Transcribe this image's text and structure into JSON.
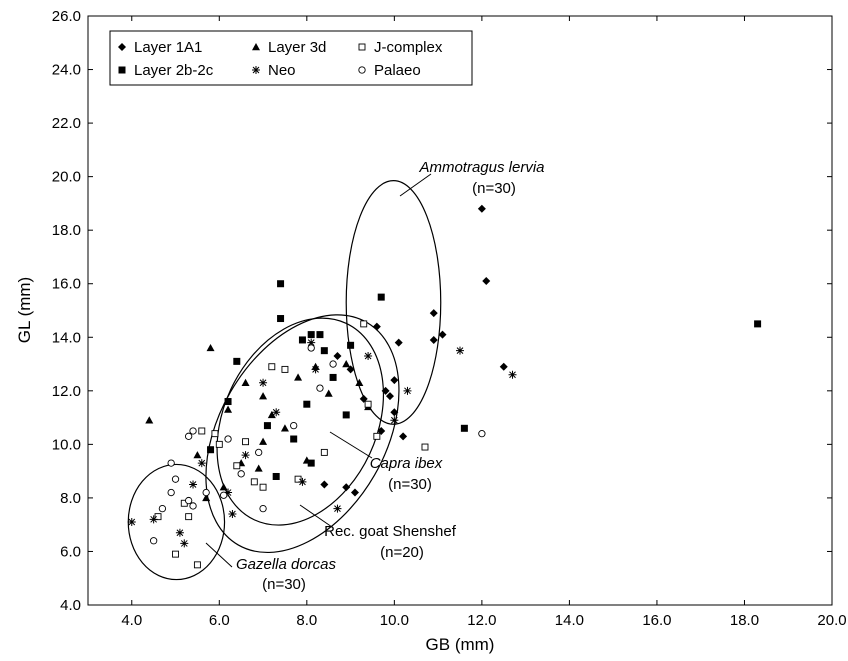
{
  "chart_data": {
    "type": "scatter",
    "xlabel": "GB (mm)",
    "ylabel": "GL (mm)",
    "xlim": [
      3.0,
      20.0
    ],
    "ylim": [
      4.0,
      26.0
    ],
    "x_ticks": [
      "4.0",
      "6.0",
      "8.0",
      "10.0",
      "12.0",
      "14.0",
      "16.0",
      "18.0",
      "20.0"
    ],
    "y_ticks": [
      "4.0",
      "6.0",
      "8.0",
      "10.0",
      "12.0",
      "14.0",
      "16.0",
      "18.0",
      "20.0",
      "22.0",
      "24.0",
      "26.0"
    ],
    "legend_position": "top-left",
    "series": [
      {
        "name": "Layer 1A1",
        "marker": "diamond",
        "points": [
          [
            8.4,
            8.5
          ],
          [
            8.9,
            8.4
          ],
          [
            9.1,
            8.2
          ],
          [
            9.6,
            14.4
          ],
          [
            9.7,
            10.5
          ],
          [
            9.8,
            12.0
          ],
          [
            10.0,
            11.2
          ],
          [
            10.0,
            12.4
          ],
          [
            10.1,
            13.8
          ],
          [
            10.2,
            10.3
          ],
          [
            10.9,
            14.9
          ],
          [
            10.9,
            13.9
          ],
          [
            11.1,
            14.1
          ],
          [
            12.0,
            18.8
          ],
          [
            12.1,
            16.1
          ],
          [
            12.5,
            12.9
          ],
          [
            9.0,
            12.8
          ],
          [
            8.7,
            13.3
          ],
          [
            9.3,
            11.7
          ],
          [
            9.9,
            11.8
          ]
        ]
      },
      {
        "name": "Layer 3d",
        "marker": "triangle",
        "points": [
          [
            4.4,
            10.9
          ],
          [
            5.8,
            13.6
          ],
          [
            6.2,
            11.3
          ],
          [
            6.6,
            12.3
          ],
          [
            7.0,
            11.8
          ],
          [
            7.2,
            11.1
          ],
          [
            7.5,
            10.6
          ],
          [
            6.5,
            9.3
          ],
          [
            6.9,
            9.1
          ],
          [
            7.8,
            12.5
          ],
          [
            8.2,
            12.9
          ],
          [
            8.5,
            11.9
          ],
          [
            8.9,
            13.0
          ],
          [
            9.2,
            12.3
          ],
          [
            9.4,
            11.4
          ],
          [
            6.1,
            8.4
          ],
          [
            5.7,
            8.0
          ],
          [
            7.0,
            10.1
          ],
          [
            5.5,
            9.6
          ],
          [
            8.0,
            9.4
          ]
        ]
      },
      {
        "name": "Layer 2b-2c",
        "marker": "square",
        "points": [
          [
            5.8,
            9.8
          ],
          [
            6.2,
            11.6
          ],
          [
            6.4,
            13.1
          ],
          [
            7.4,
            16.0
          ],
          [
            7.4,
            14.7
          ],
          [
            7.1,
            10.7
          ],
          [
            7.3,
            8.8
          ],
          [
            7.7,
            10.2
          ],
          [
            7.9,
            13.9
          ],
          [
            8.1,
            14.1
          ],
          [
            8.3,
            14.1
          ],
          [
            8.0,
            11.5
          ],
          [
            8.1,
            9.3
          ],
          [
            8.4,
            13.5
          ],
          [
            8.6,
            12.5
          ],
          [
            8.9,
            11.1
          ],
          [
            9.0,
            13.7
          ],
          [
            9.7,
            15.5
          ],
          [
            11.6,
            10.6
          ],
          [
            18.3,
            14.5
          ]
        ]
      },
      {
        "name": "J-complex",
        "marker": "square-open",
        "points": [
          [
            4.6,
            7.3
          ],
          [
            5.0,
            5.9
          ],
          [
            5.2,
            7.8
          ],
          [
            5.5,
            5.5
          ],
          [
            5.6,
            10.5
          ],
          [
            5.9,
            10.4
          ],
          [
            6.4,
            9.2
          ],
          [
            6.6,
            10.1
          ],
          [
            7.0,
            8.4
          ],
          [
            7.2,
            12.9
          ],
          [
            7.5,
            12.8
          ],
          [
            8.4,
            9.7
          ],
          [
            9.3,
            14.5
          ],
          [
            9.4,
            11.5
          ],
          [
            10.7,
            9.9
          ],
          [
            9.6,
            10.3
          ],
          [
            5.3,
            7.3
          ],
          [
            6.8,
            8.6
          ],
          [
            7.8,
            8.7
          ],
          [
            6.0,
            10.0
          ]
        ]
      },
      {
        "name": "Neo",
        "marker": "asterisk",
        "points": [
          [
            4.0,
            7.1
          ],
          [
            4.5,
            7.2
          ],
          [
            5.1,
            6.7
          ],
          [
            5.4,
            8.5
          ],
          [
            5.6,
            9.3
          ],
          [
            6.2,
            8.2
          ],
          [
            6.6,
            9.6
          ],
          [
            7.0,
            12.3
          ],
          [
            7.3,
            11.2
          ],
          [
            8.1,
            13.8
          ],
          [
            8.2,
            12.8
          ],
          [
            8.7,
            7.6
          ],
          [
            9.4,
            13.3
          ],
          [
            10.0,
            10.9
          ],
          [
            10.3,
            12.0
          ],
          [
            11.5,
            13.5
          ],
          [
            12.7,
            12.6
          ],
          [
            7.9,
            8.6
          ],
          [
            6.3,
            7.4
          ],
          [
            5.2,
            6.3
          ]
        ]
      },
      {
        "name": "Palaeo",
        "marker": "circle-open",
        "points": [
          [
            4.5,
            6.4
          ],
          [
            4.7,
            7.6
          ],
          [
            4.9,
            9.3
          ],
          [
            5.0,
            8.7
          ],
          [
            5.3,
            7.9
          ],
          [
            5.3,
            10.3
          ],
          [
            5.4,
            10.5
          ],
          [
            5.7,
            8.2
          ],
          [
            6.1,
            8.1
          ],
          [
            6.5,
            8.9
          ],
          [
            6.9,
            9.7
          ],
          [
            7.0,
            7.6
          ],
          [
            7.7,
            10.7
          ],
          [
            8.1,
            13.6
          ],
          [
            8.3,
            12.1
          ],
          [
            8.6,
            13.0
          ],
          [
            12.0,
            10.4
          ],
          [
            4.9,
            8.2
          ],
          [
            5.4,
            7.7
          ],
          [
            6.2,
            10.2
          ]
        ]
      }
    ],
    "annotations": [
      {
        "text": "Ammotragus lervia",
        "n": "(n=30)",
        "ellipse": {
          "cx": 9.98,
          "cy": 15.3,
          "rx": 1.08,
          "ry": 4.55,
          "rotate": 0
        }
      },
      {
        "text": "Capra ibex",
        "n": "(n=30)",
        "ellipse": {
          "cx": 7.85,
          "cy": 10.85,
          "rx": 1.75,
          "ry": 4.05,
          "rotate": 25
        }
      },
      {
        "text": "Rec. goat Shenshef",
        "n": "(n=20)",
        "ellipse": {
          "cx": 7.9,
          "cy": 10.4,
          "rx": 1.9,
          "ry": 4.8,
          "rotate": 30
        }
      },
      {
        "text": "Gazella dorcas",
        "n": "(n=30)",
        "ellipse": {
          "cx": 5.02,
          "cy": 7.1,
          "rx": 1.1,
          "ry": 2.15,
          "rotate": 0
        }
      }
    ]
  }
}
